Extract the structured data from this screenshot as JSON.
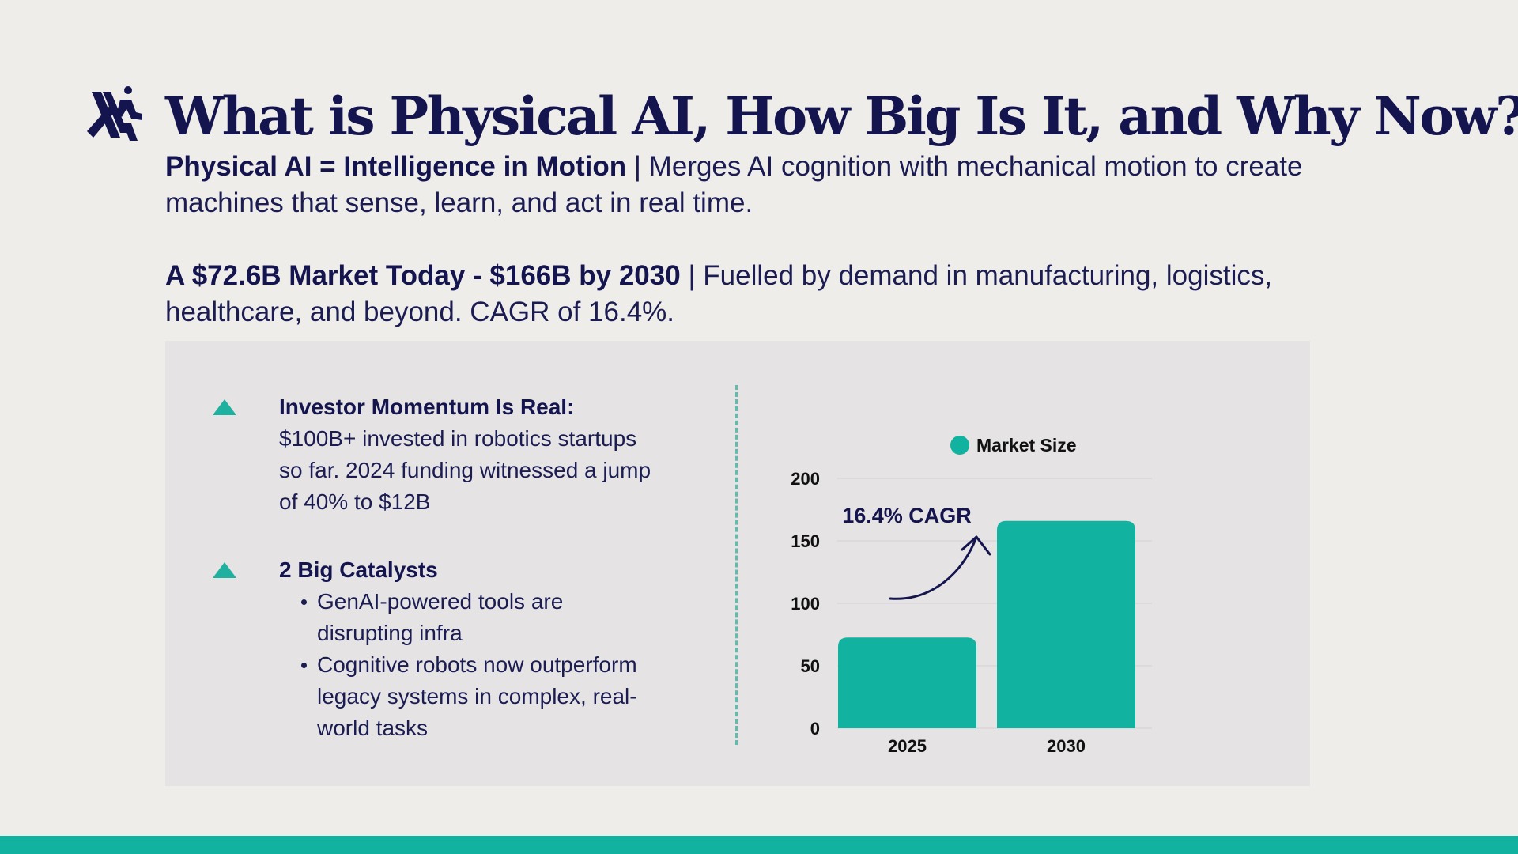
{
  "slide": {
    "title": "What is Physical AI, How Big Is It, and Why Now?",
    "intro": {
      "bold": "Physical AI = Intelligence in Motion",
      "text": " | Merges AI cognition with mechanical motion to create machines that sense, learn, and act in real time."
    },
    "market": {
      "bold": "A $72.6B Market Today - $166B by 2030",
      "text": " | Fuelled by demand in manufacturing, logistics, healthcare, and beyond. CAGR of 16.4%."
    },
    "points": {
      "investor": {
        "heading": "Investor Momentum Is Real:",
        "body": "$100B+ invested in robotics startups so far. 2024 funding witnessed a jump of 40% to $12B"
      },
      "catalysts": {
        "heading": "2 Big Catalysts",
        "bullets": [
          "GenAI-powered tools are disrupting infra",
          "Cognitive robots now outperform legacy systems in complex, real-world tasks"
        ]
      }
    }
  },
  "colors": {
    "accent": "#12b2a1",
    "navy": "#14154f",
    "background": "#efedea",
    "panel": "#e5e3e4"
  },
  "icons": {
    "logo": "stylized-figure-logo",
    "bullet_marker": "teal-triangle-icon",
    "annotation_arrow": "curved-arrow-icon"
  },
  "chart_data": {
    "type": "bar",
    "categories": [
      "2025",
      "2030"
    ],
    "series": [
      {
        "name": "Market Size",
        "values": [
          72.6,
          166
        ]
      }
    ],
    "ylim": [
      0,
      200
    ],
    "yticks": [
      "0",
      "50",
      "100",
      "150",
      "200"
    ],
    "grid": true,
    "legend": "top-center",
    "annotation": "16.4% CAGR",
    "color": "#12b2a1"
  }
}
